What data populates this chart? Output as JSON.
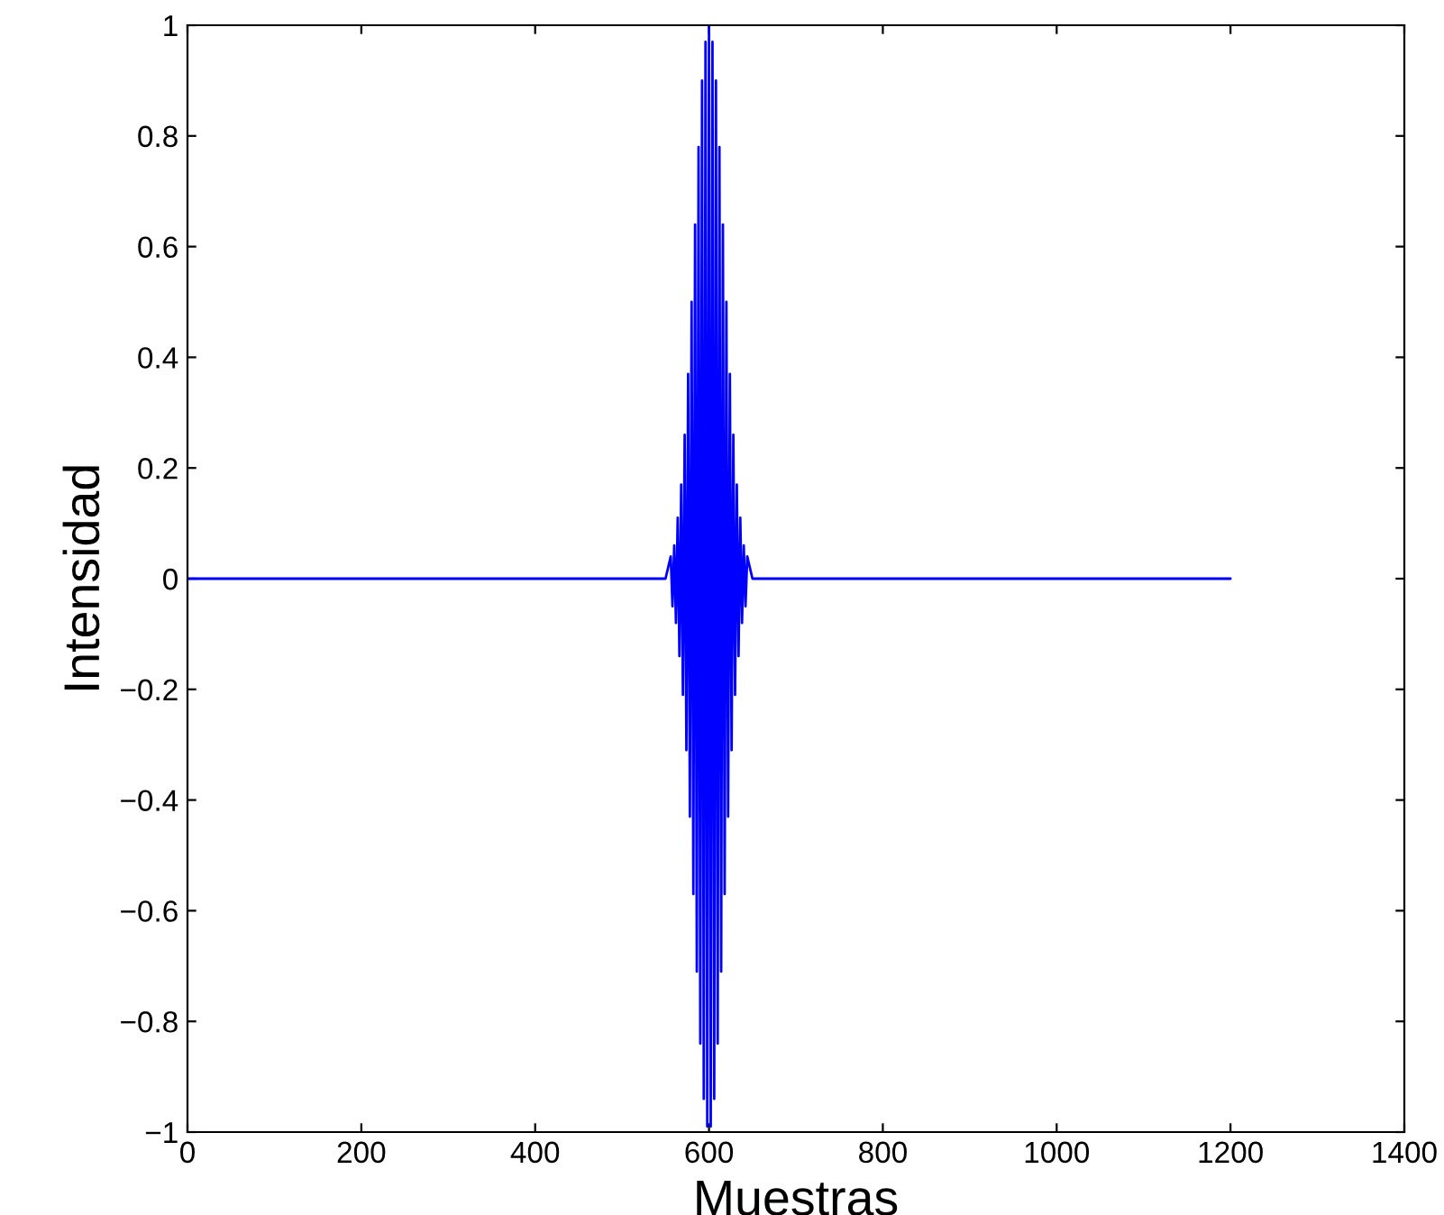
{
  "chart_data": {
    "type": "line",
    "xlabel": "Muestras",
    "ylabel": "Intensidad",
    "x": [
      0,
      550,
      556,
      558,
      560,
      562,
      564,
      566,
      568,
      570,
      572,
      574,
      576,
      578,
      580,
      582,
      584,
      586,
      588,
      590,
      592,
      594,
      596,
      598,
      600,
      602,
      604,
      606,
      608,
      610,
      612,
      614,
      616,
      618,
      620,
      622,
      624,
      626,
      628,
      630,
      632,
      634,
      636,
      638,
      640,
      642,
      644,
      650,
      1200
    ],
    "series": [
      {
        "color": "#0000ff",
        "values": [
          0,
          0,
          0.04,
          -0.05,
          0.06,
          -0.08,
          0.11,
          -0.14,
          0.17,
          -0.21,
          0.26,
          -0.31,
          0.37,
          -0.43,
          0.5,
          -0.57,
          0.64,
          -0.71,
          0.78,
          -0.84,
          0.9,
          -0.94,
          0.97,
          -0.99,
          1,
          -0.99,
          0.97,
          -0.94,
          0.9,
          -0.84,
          0.78,
          -0.71,
          0.64,
          -0.57,
          0.5,
          -0.43,
          0.37,
          -0.31,
          0.26,
          -0.21,
          0.17,
          -0.14,
          0.11,
          -0.08,
          0.06,
          -0.05,
          0.04,
          0,
          0
        ]
      }
    ],
    "xlim": [
      0,
      1400
    ],
    "xticks": [
      0,
      200,
      400,
      600,
      800,
      1000,
      1200,
      1400
    ],
    "ylim": [
      -1,
      1
    ],
    "yticks": [
      {
        "value": -1,
        "label": "−1"
      },
      {
        "value": -0.8,
        "label": "−0.8"
      },
      {
        "value": -0.6,
        "label": "−0.6"
      },
      {
        "value": -0.4,
        "label": "−0.4"
      },
      {
        "value": -0.2,
        "label": "−0.2"
      },
      0,
      0.2,
      0.4,
      0.6,
      0.8,
      1
    ],
    "grid": false,
    "legend": false,
    "marker": "none",
    "line_style": "solid"
  }
}
